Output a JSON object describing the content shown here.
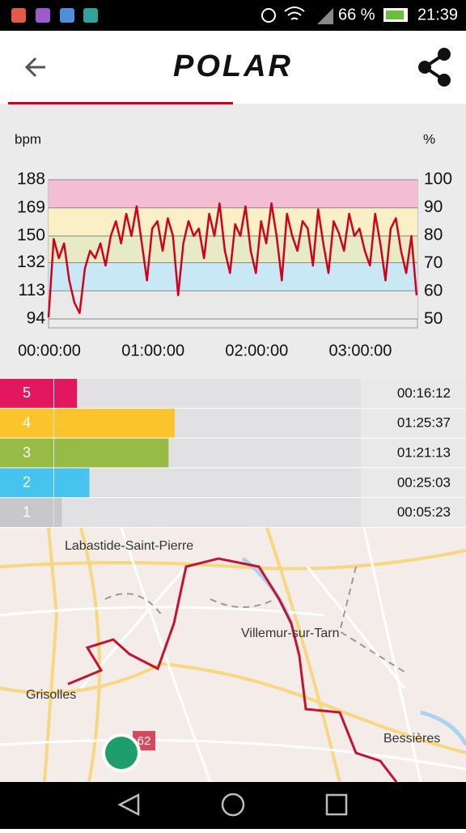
{
  "status_bar": {
    "battery": "66 %",
    "time": "21:39"
  },
  "header": {
    "logo": "POLAR"
  },
  "hr_chart": {
    "type": "line",
    "y_label": "bpm",
    "y2_label": "%",
    "x": [
      0,
      3,
      6,
      9,
      12,
      15,
      18,
      21,
      24,
      27,
      30,
      33,
      36,
      39,
      42,
      45,
      48,
      51,
      54,
      57,
      60,
      63,
      66,
      69,
      72,
      75,
      78,
      81,
      84,
      87,
      90,
      93,
      96,
      99,
      102,
      105,
      108,
      111,
      114,
      117,
      120,
      123,
      126,
      129,
      132,
      135,
      138,
      141,
      144,
      147,
      150,
      153,
      156,
      159,
      162,
      165,
      168,
      171,
      174,
      177,
      180,
      183,
      186,
      189,
      192,
      195,
      198,
      201,
      204,
      207,
      210,
      213
    ],
    "series": [
      {
        "color": "#d0021b",
        "values": [
          95,
          148,
          135,
          145,
          120,
          105,
          98,
          128,
          140,
          135,
          145,
          130,
          150,
          160,
          145,
          165,
          150,
          170,
          145,
          120,
          155,
          160,
          140,
          162,
          150,
          110,
          145,
          160,
          150,
          155,
          135,
          165,
          150,
          172,
          140,
          125,
          158,
          150,
          170,
          140,
          125,
          160,
          145,
          172,
          150,
          120,
          165,
          150,
          140,
          160,
          155,
          130,
          168,
          145,
          125,
          160,
          152,
          140,
          165,
          150,
          155,
          140,
          130,
          165,
          145,
          120,
          155,
          162,
          140,
          125,
          150,
          110
        ]
      }
    ],
    "xlim": [
      0,
      213.5
    ],
    "xticks": [
      {
        "value": 0,
        "label": "00:00:00"
      },
      {
        "value": 60,
        "label": "01:00:00"
      },
      {
        "value": 120,
        "label": "02:00:00"
      },
      {
        "value": 180,
        "label": "03:00:00"
      }
    ],
    "ylim": [
      88,
      188
    ],
    "yticks": [
      94,
      113,
      132,
      150,
      169,
      188
    ],
    "y2lim": [
      47,
      100
    ],
    "y2ticks": [
      50,
      60,
      70,
      80,
      90,
      100
    ],
    "band_colors": [
      "#e9e9ea",
      "#c9e8f6",
      "#e6ebc6",
      "#fbefc6",
      "#f3bdd3"
    ]
  },
  "zones": [
    {
      "label": "5",
      "color": "#e3175f",
      "time": "00:16:12"
    },
    {
      "label": "4",
      "color": "#fcc42c",
      "time": "01:25:37"
    },
    {
      "label": "3",
      "color": "#97bb45",
      "time": "01:21:13"
    },
    {
      "label": "2",
      "color": "#46c3ee",
      "time": "00:25:03"
    },
    {
      "label": "1",
      "color": "#c7c8ca",
      "time": "00:05:23"
    }
  ],
  "map": {
    "places": [
      "Labastide-Saint-Pierre",
      "Villemur-sur-Tarn",
      "Grisolles",
      "Bessières"
    ],
    "road_sign": "62"
  }
}
